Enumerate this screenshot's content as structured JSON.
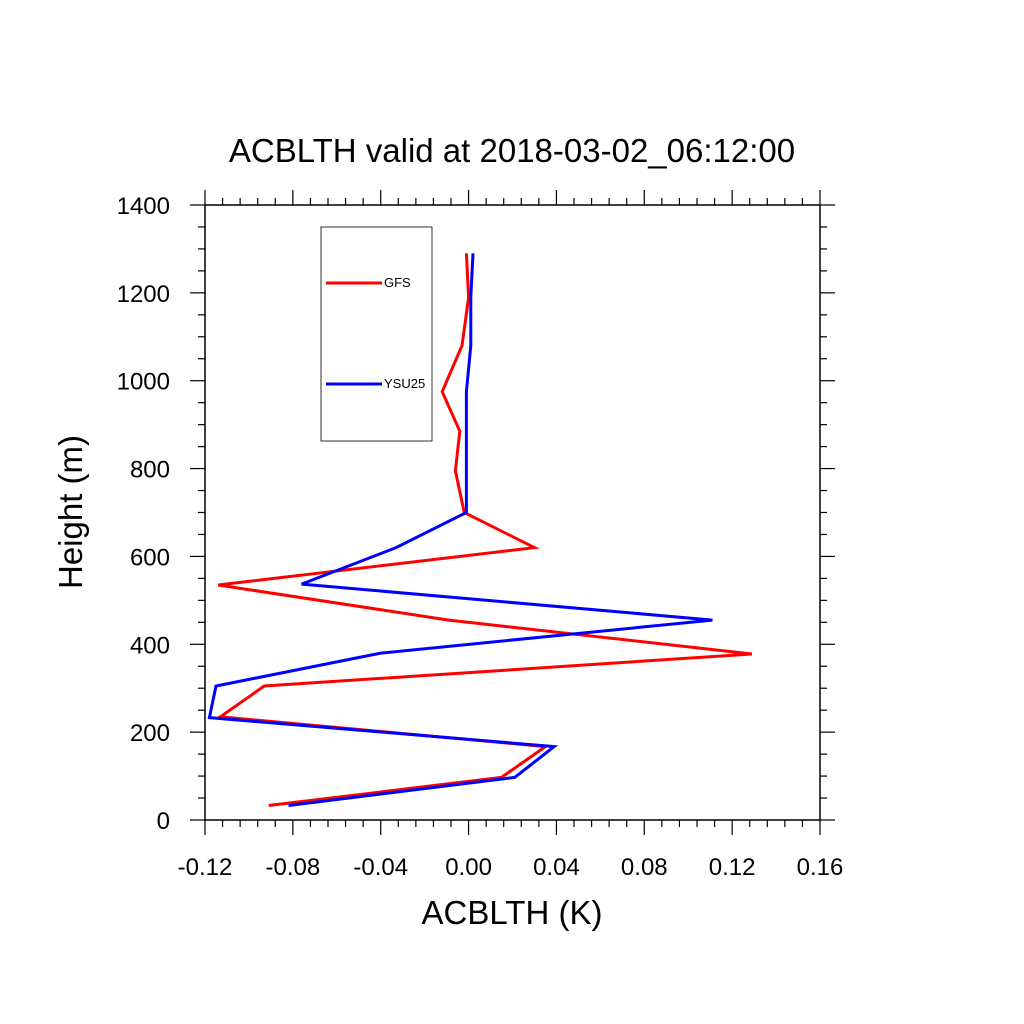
{
  "chart_data": {
    "type": "line",
    "title": "ACBLTH valid at 2018-03-02_06:12:00",
    "xlabel": "ACBLTH (K)",
    "ylabel": "Height (m)",
    "xlim": [
      -0.12,
      0.16
    ],
    "ylim": [
      0,
      1400
    ],
    "xticks": [
      "-0.12",
      "-0.08",
      "-0.04",
      "0.00",
      "0.04",
      "0.08",
      "0.12",
      "0.16"
    ],
    "yticks": [
      "0",
      "200",
      "400",
      "600",
      "800",
      "1000",
      "1200",
      "1400"
    ],
    "grid": false,
    "legend": "upper-left inside",
    "series": [
      {
        "name": "GFS",
        "color": "#ff0000",
        "x": [
          -0.091,
          0.015,
          0.035,
          -0.113,
          -0.093,
          0.129,
          -0.009,
          -0.114,
          0.03,
          -0.002,
          -0.006,
          -0.004,
          -0.012,
          -0.003,
          0.0,
          -0.001
        ],
        "y": [
          33,
          97,
          167,
          235,
          305,
          378,
          455,
          535,
          620,
          700,
          795,
          885,
          975,
          1080,
          1190,
          1290
        ]
      },
      {
        "name": "YSU25",
        "color": "#0000ff",
        "x": [
          -0.082,
          0.021,
          0.039,
          -0.118,
          -0.115,
          -0.04,
          0.111,
          -0.076,
          -0.033,
          -0.001,
          -0.001,
          -0.001,
          -0.001,
          0.001,
          0.001,
          0.002
        ],
        "y": [
          33,
          97,
          167,
          233,
          305,
          380,
          455,
          537,
          620,
          700,
          795,
          885,
          975,
          1080,
          1190,
          1290
        ]
      }
    ]
  }
}
